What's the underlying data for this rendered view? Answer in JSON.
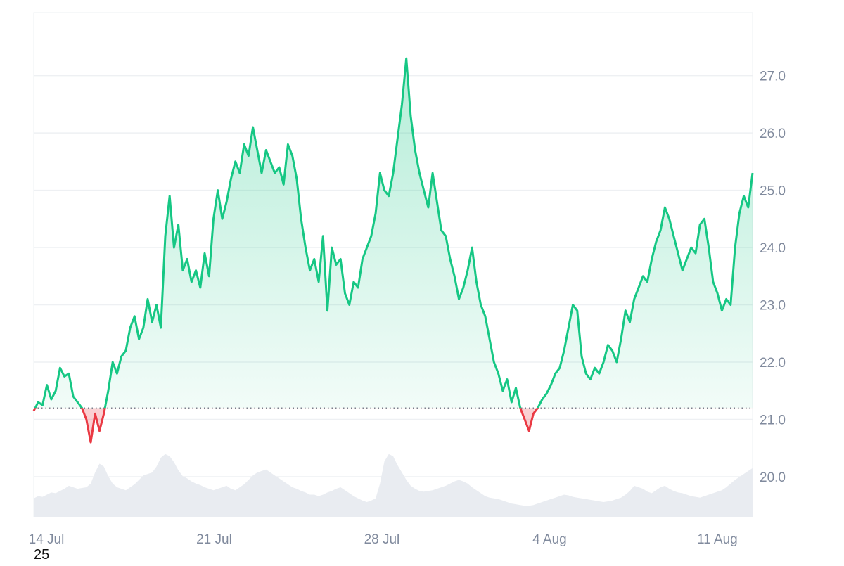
{
  "chart_data": {
    "type": "area",
    "x_start": "14 Jul",
    "x_end": "13 Aug",
    "x_ticks": [
      "14 Jul",
      "21 Jul",
      "28 Jul",
      "4 Aug",
      "11 Aug"
    ],
    "y_ticks": [
      "20.0",
      "21.0",
      "22.0",
      "23.0",
      "24.0",
      "25.0",
      "26.0",
      "27.0"
    ],
    "ylim": [
      19.3,
      28.1
    ],
    "baseline": 21.2,
    "grid": true,
    "series": [
      {
        "values": [
          21.15,
          21.3,
          21.25,
          21.6,
          21.35,
          21.5,
          21.9,
          21.75,
          21.8,
          21.4,
          21.3,
          21.2,
          21.0,
          20.6,
          21.1,
          20.8,
          21.1,
          21.5,
          22.0,
          21.8,
          22.1,
          22.2,
          22.6,
          22.8,
          22.4,
          22.6,
          23.1,
          22.7,
          23.0,
          22.6,
          24.2,
          24.9,
          24.0,
          24.4,
          23.6,
          23.8,
          23.4,
          23.6,
          23.3,
          23.9,
          23.5,
          24.5,
          25.0,
          24.5,
          24.8,
          25.2,
          25.5,
          25.3,
          25.8,
          25.6,
          26.1,
          25.7,
          25.3,
          25.7,
          25.5,
          25.3,
          25.4,
          25.1,
          25.8,
          25.6,
          25.2,
          24.5,
          24.0,
          23.6,
          23.8,
          23.4,
          24.2,
          22.9,
          24.0,
          23.7,
          23.8,
          23.2,
          23.0,
          23.4,
          23.3,
          23.8,
          24.0,
          24.2,
          24.6,
          25.3,
          25.0,
          24.9,
          25.3,
          25.9,
          26.5,
          27.3,
          26.3,
          25.7,
          25.3,
          25.0,
          24.7,
          25.3,
          24.8,
          24.3,
          24.2,
          23.8,
          23.5,
          23.1,
          23.3,
          23.6,
          24.0,
          23.4,
          23.0,
          22.8,
          22.4,
          22.0,
          21.8,
          21.5,
          21.7,
          21.3,
          21.55,
          21.2,
          21.0,
          20.8,
          21.1,
          21.2,
          21.35,
          21.45,
          21.6,
          21.8,
          21.9,
          22.2,
          22.6,
          23.0,
          22.9,
          22.1,
          21.8,
          21.7,
          21.9,
          21.8,
          22.0,
          22.3,
          22.2,
          22.0,
          22.4,
          22.9,
          22.7,
          23.1,
          23.3,
          23.5,
          23.4,
          23.8,
          24.1,
          24.3,
          24.7,
          24.5,
          24.2,
          23.9,
          23.6,
          23.8,
          24.0,
          23.9,
          24.4,
          24.5,
          24.0,
          23.4,
          23.2,
          22.9,
          23.1,
          23.0,
          24.0,
          24.6,
          24.9,
          24.7,
          25.3
        ]
      }
    ],
    "volume": [
      0.25,
      0.28,
      0.27,
      0.3,
      0.33,
      0.32,
      0.35,
      0.38,
      0.42,
      0.4,
      0.38,
      0.39,
      0.4,
      0.45,
      0.6,
      0.72,
      0.68,
      0.55,
      0.45,
      0.4,
      0.38,
      0.36,
      0.4,
      0.44,
      0.5,
      0.56,
      0.58,
      0.6,
      0.68,
      0.8,
      0.85,
      0.82,
      0.74,
      0.63,
      0.55,
      0.52,
      0.48,
      0.45,
      0.43,
      0.4,
      0.38,
      0.36,
      0.38,
      0.4,
      0.42,
      0.38,
      0.36,
      0.4,
      0.44,
      0.5,
      0.56,
      0.6,
      0.62,
      0.64,
      0.6,
      0.56,
      0.52,
      0.48,
      0.44,
      0.4,
      0.38,
      0.35,
      0.33,
      0.3,
      0.3,
      0.28,
      0.3,
      0.33,
      0.35,
      0.38,
      0.4,
      0.36,
      0.32,
      0.28,
      0.25,
      0.22,
      0.2,
      0.22,
      0.25,
      0.45,
      0.75,
      0.85,
      0.82,
      0.7,
      0.6,
      0.5,
      0.42,
      0.38,
      0.35,
      0.34,
      0.35,
      0.36,
      0.38,
      0.4,
      0.42,
      0.45,
      0.48,
      0.5,
      0.48,
      0.45,
      0.4,
      0.36,
      0.32,
      0.28,
      0.26,
      0.25,
      0.24,
      0.22,
      0.2,
      0.18,
      0.17,
      0.16,
      0.15,
      0.15,
      0.16,
      0.18,
      0.2,
      0.22,
      0.24,
      0.26,
      0.28,
      0.3,
      0.29,
      0.27,
      0.26,
      0.25,
      0.24,
      0.23,
      0.22,
      0.21,
      0.2,
      0.21,
      0.22,
      0.24,
      0.26,
      0.3,
      0.35,
      0.42,
      0.4,
      0.38,
      0.34,
      0.32,
      0.36,
      0.4,
      0.42,
      0.38,
      0.35,
      0.33,
      0.32,
      0.3,
      0.28,
      0.27,
      0.26,
      0.28,
      0.3,
      0.32,
      0.34,
      0.36,
      0.4,
      0.45,
      0.5,
      0.54,
      0.58,
      0.62,
      0.66
    ],
    "colors": {
      "up_line": "#16c784",
      "down_line": "#ea3943",
      "up_fill": "#16c784",
      "down_fill": "#ea3943",
      "baseline": "#7a7f8c",
      "grid": "#eef0f3",
      "volume": "#e9ecf1",
      "axis_text": "#808a9d"
    }
  },
  "footnote": "25"
}
